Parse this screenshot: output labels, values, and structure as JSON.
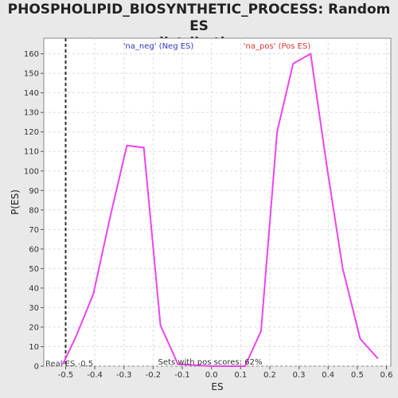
{
  "chart_data": {
    "type": "line",
    "title_line1": "PHOSPHOLIPID_BIOSYNTHETIC_PROCESS: Random ES",
    "title_line2": "distribution",
    "xlabel": "ES",
    "ylabel": "P(ES)",
    "xlim": [
      -0.575,
      0.615
    ],
    "ylim": [
      0,
      168
    ],
    "x_ticks": [
      -0.5,
      -0.4,
      -0.3,
      -0.2,
      -0.1,
      0.0,
      0.1,
      0.2,
      0.3,
      0.4,
      0.5,
      0.6
    ],
    "x_tick_labels": [
      "-0.5",
      "-0.4",
      "-0.3",
      "-0.2",
      "-0.1",
      "0.0",
      "0.1",
      "0.2",
      "0.3",
      "0.4",
      "0.5",
      "0.6"
    ],
    "y_ticks": [
      0,
      10,
      20,
      30,
      40,
      50,
      60,
      70,
      80,
      90,
      100,
      110,
      120,
      130,
      140,
      150,
      160
    ],
    "y_tick_labels": [
      "0",
      "10",
      "20",
      "30",
      "40",
      "50",
      "60",
      "70",
      "80",
      "90",
      "100",
      "110",
      "120",
      "130",
      "140",
      "150",
      "160"
    ],
    "grid": true,
    "line_color": "#ee44ee",
    "series": [
      {
        "values": [
          {
            "x": -0.51,
            "y": 1
          },
          {
            "x": -0.465,
            "y": 15
          },
          {
            "x": -0.405,
            "y": 37
          },
          {
            "x": -0.345,
            "y": 78
          },
          {
            "x": -0.29,
            "y": 113
          },
          {
            "x": -0.232,
            "y": 112
          },
          {
            "x": -0.175,
            "y": 21
          },
          {
            "x": -0.115,
            "y": 1
          },
          {
            "x": 0.0,
            "y": 0
          },
          {
            "x": 0.115,
            "y": 0
          },
          {
            "x": 0.17,
            "y": 18
          },
          {
            "x": 0.225,
            "y": 120
          },
          {
            "x": 0.28,
            "y": 155
          },
          {
            "x": 0.34,
            "y": 160
          },
          {
            "x": 0.395,
            "y": 103
          },
          {
            "x": 0.45,
            "y": 50
          },
          {
            "x": 0.51,
            "y": 14
          },
          {
            "x": 0.57,
            "y": 4
          }
        ]
      }
    ],
    "real_es": {
      "value": -0.5,
      "label": "Real ES -0.5"
    },
    "annotations": {
      "neg_label": "'na_neg' (Neg ES)",
      "neg_color": "#3333cc",
      "pos_label": "'na_pos' (Pos ES)",
      "pos_color": "#dd3333",
      "bottom_note": "Sets with pos scores: 62%"
    }
  }
}
